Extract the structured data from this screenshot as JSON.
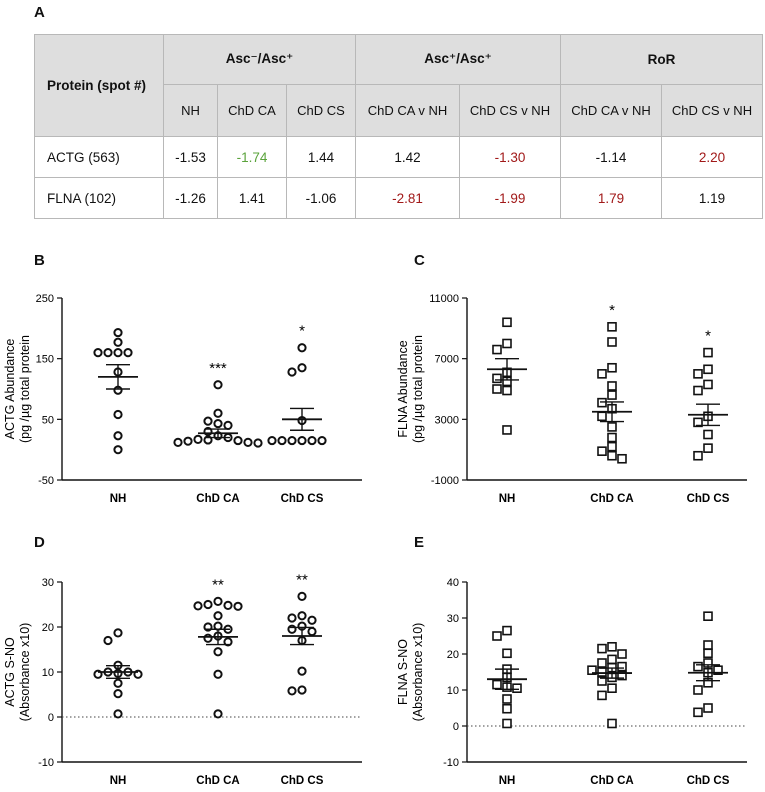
{
  "panels": {
    "A": "A",
    "B": "B",
    "C": "C",
    "D": "D",
    "E": "E"
  },
  "table": {
    "protein_header": "Protein (spot #)",
    "groups": [
      "Asc⁻/Asc⁺",
      "Asc⁺/Asc⁺",
      "RoR"
    ],
    "subheaders": [
      "NH",
      "ChD CA",
      "ChD CS",
      "ChD CA v NH",
      "ChD CS v NH",
      "ChD CA v NH",
      "ChD CS v NH"
    ],
    "rows": [
      {
        "protein": "ACTG (563)",
        "values": [
          "-1.53",
          "-1.74",
          "1.44",
          "1.42",
          "-1.30",
          "-1.14",
          "2.20"
        ]
      },
      {
        "protein": "FLNA (102)",
        "values": [
          "-1.26",
          "1.41",
          "-1.06",
          "-2.81",
          "-1.99",
          "1.79",
          "1.19"
        ]
      }
    ],
    "colors": {
      "green": "#5aa33b",
      "red": "#a11919"
    }
  },
  "chart_data": [
    {
      "panel": "B",
      "type": "scatter",
      "marker": "circle",
      "ylabel_line1": "ACTG Abundance",
      "ylabel_line2": "(pg /µg total protein",
      "categories": [
        "NH",
        "ChD CA",
        "ChD CS"
      ],
      "ylim": [
        -50,
        250
      ],
      "yticks": [
        -50,
        50,
        150,
        250
      ],
      "points": [
        [
          193,
          177,
          160,
          160,
          160,
          160,
          128,
          98,
          58,
          23,
          0
        ],
        [
          107,
          60,
          47,
          43,
          40,
          30,
          23,
          20,
          17,
          16,
          15,
          14,
          12,
          12,
          11
        ],
        [
          168,
          135,
          128,
          48,
          15,
          15,
          15,
          15,
          15,
          15
        ]
      ],
      "means": [
        120,
        27,
        50
      ],
      "sems": [
        20,
        7,
        18
      ],
      "significance": [
        "",
        "***",
        "*"
      ],
      "zero_line": false
    },
    {
      "panel": "C",
      "type": "scatter",
      "marker": "square",
      "ylabel_line1": "FLNA Abundance",
      "ylabel_line2": "(pg /µg total protein",
      "categories": [
        "NH",
        "ChD CA",
        "ChD CS"
      ],
      "ylim": [
        -1000,
        11000
      ],
      "yticks": [
        -1000,
        3000,
        7000,
        11000
      ],
      "points": [
        [
          9400,
          8000,
          7600,
          6100,
          5700,
          5500,
          5000,
          4900,
          2300
        ],
        [
          9100,
          8100,
          6400,
          6000,
          5200,
          4600,
          4100,
          3700,
          3200,
          2500,
          1800,
          1200,
          900,
          600,
          400
        ],
        [
          7400,
          6300,
          6000,
          5300,
          4900,
          3200,
          2800,
          2000,
          1100,
          600
        ]
      ],
      "means": [
        6300,
        3500,
        3300
      ],
      "sems": [
        700,
        650,
        700
      ],
      "significance": [
        "",
        "*",
        "*"
      ],
      "zero_line": false
    },
    {
      "panel": "D",
      "type": "scatter",
      "marker": "circle",
      "ylabel_line1": "ACTG S-NO",
      "ylabel_line2": "(Absorbance x10)",
      "categories": [
        "NH",
        "ChD CA",
        "ChD CS"
      ],
      "ylim": [
        -10,
        30
      ],
      "yticks": [
        -10,
        0,
        10,
        20,
        30
      ],
      "points": [
        [
          18.7,
          17,
          11.5,
          10,
          10,
          9.7,
          9.5,
          9.5,
          7.5,
          5.2,
          0.7
        ],
        [
          25.7,
          25,
          24.8,
          24.7,
          24.6,
          22.5,
          20.2,
          20,
          19.5,
          18,
          17.5,
          16.7,
          14.5,
          9.5,
          0.7
        ],
        [
          26.8,
          22.5,
          22,
          21.5,
          20.2,
          19.5,
          19,
          17,
          10.2,
          6,
          5.8
        ]
      ],
      "means": [
        10,
        17.8,
        18
      ],
      "sems": [
        1.4,
        1.7,
        1.9
      ],
      "significance": [
        "",
        "**",
        "**"
      ],
      "zero_line": true
    },
    {
      "panel": "E",
      "type": "scatter",
      "marker": "square",
      "ylabel_line1": "FLNA S-NO",
      "ylabel_line2": "(Absorbance x10)",
      "categories": [
        "NH",
        "ChD CA",
        "ChD CS"
      ],
      "ylim": [
        -10,
        40
      ],
      "yticks": [
        -10,
        0,
        10,
        20,
        30,
        40
      ],
      "points": [
        [
          26.5,
          25,
          20.2,
          15.8,
          13.5,
          11.5,
          10.8,
          10.5,
          7.5,
          4.8,
          0.7
        ],
        [
          22,
          21.5,
          20,
          18.5,
          17.5,
          16.5,
          16.2,
          15.5,
          15,
          14,
          13.5,
          12.5,
          10.5,
          8.5,
          0.7
        ],
        [
          30.5,
          22.5,
          20.2,
          17.5,
          16.5,
          15.5,
          14.8,
          12,
          10,
          5,
          3.8
        ]
      ],
      "means": [
        13,
        14.7,
        14.8
      ],
      "sems": [
        2.8,
        1.4,
        2.2
      ],
      "significance": [
        "",
        "",
        ""
      ],
      "zero_line": true
    }
  ]
}
